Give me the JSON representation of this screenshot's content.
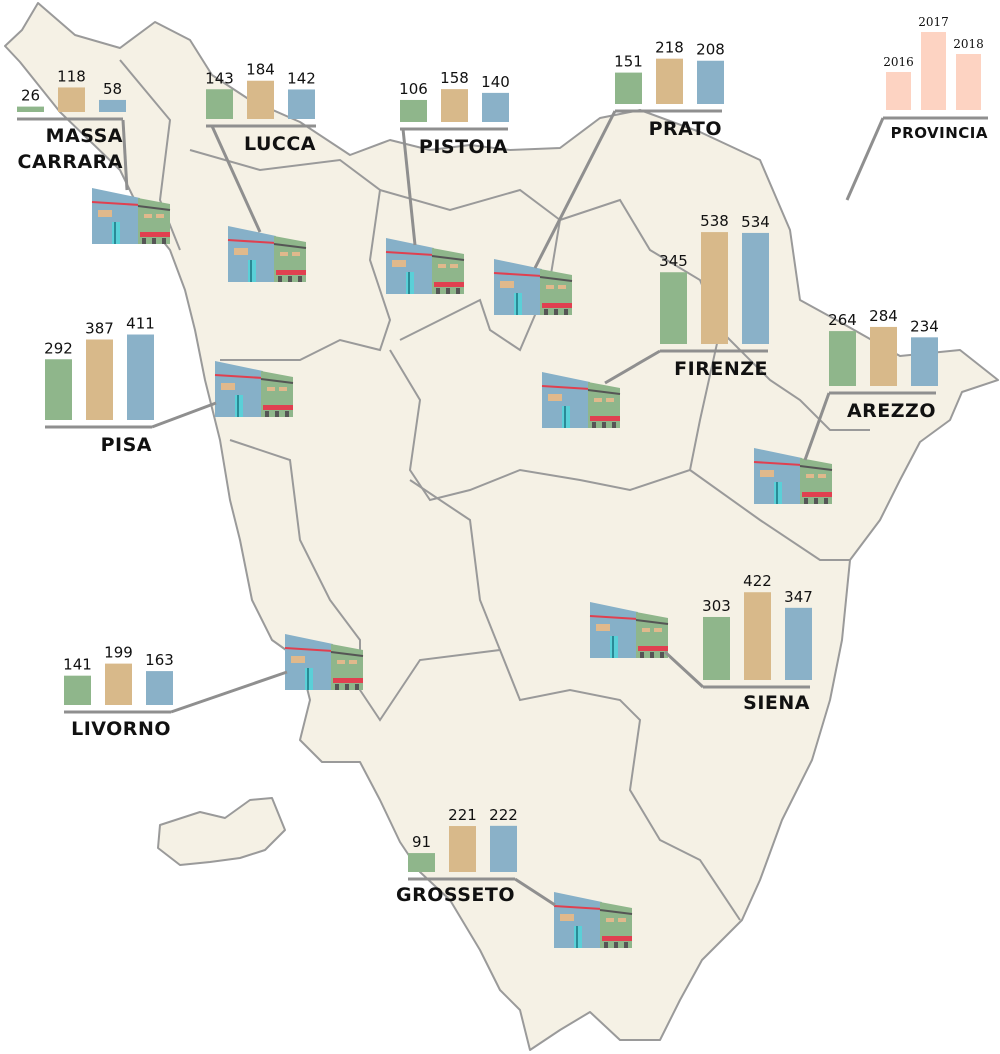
{
  "legend": {
    "label": "PROVINCIA",
    "years": [
      "2016",
      "2017",
      "2018"
    ],
    "color": "#fdd3c2"
  },
  "colors": [
    "#8fb68b",
    "#d8b98a",
    "#8ab1c8"
  ],
  "provinces": [
    {
      "name": "MASSA CARRARA",
      "values": [
        26,
        118,
        58
      ]
    },
    {
      "name": "LUCCA",
      "values": [
        143,
        184,
        142
      ]
    },
    {
      "name": "PISTOIA",
      "values": [
        106,
        158,
        140
      ]
    },
    {
      "name": "PRATO",
      "values": [
        151,
        218,
        208
      ]
    },
    {
      "name": "FIRENZE",
      "values": [
        345,
        538,
        534
      ]
    },
    {
      "name": "AREZZO",
      "values": [
        264,
        284,
        234
      ]
    },
    {
      "name": "PISA",
      "values": [
        292,
        387,
        411
      ]
    },
    {
      "name": "LIVORNO",
      "values": [
        141,
        199,
        163
      ]
    },
    {
      "name": "SIENA",
      "values": [
        303,
        422,
        347
      ]
    },
    {
      "name": "GROSSETO",
      "values": [
        91,
        221,
        222
      ]
    }
  ]
}
